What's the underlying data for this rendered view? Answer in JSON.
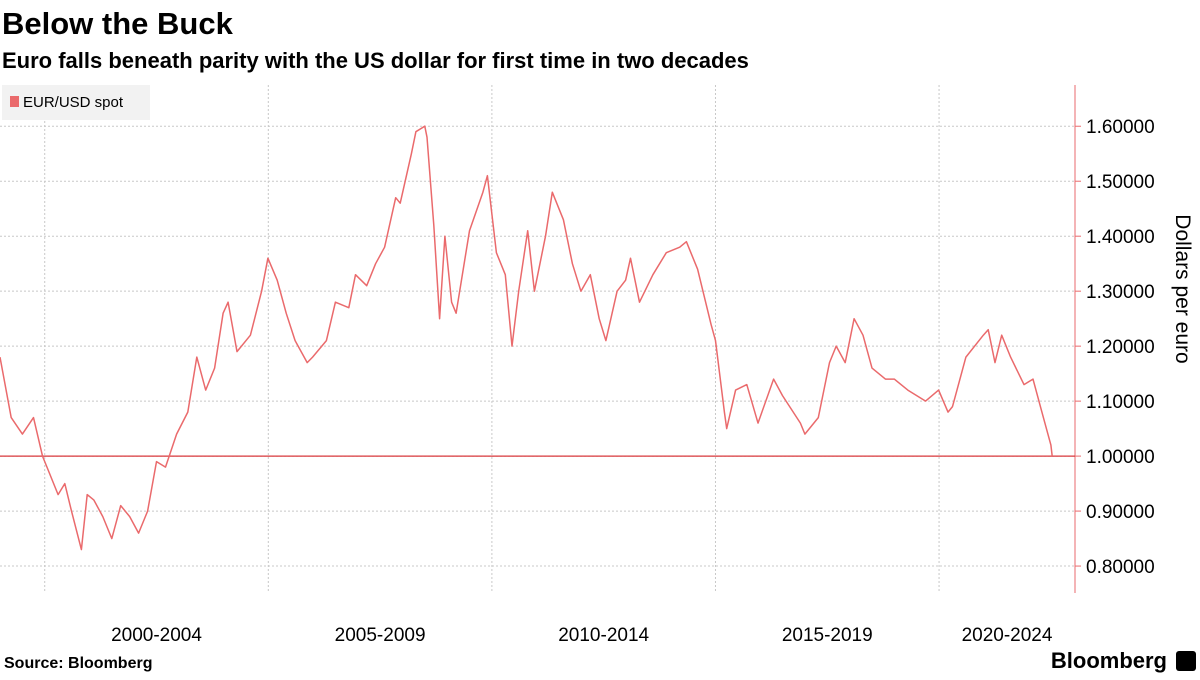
{
  "chart_data": {
    "type": "line",
    "title": "Below the Buck",
    "subtitle": "Euro falls beneath parity with the US dollar for first time in two decades",
    "y_axis_label": "Dollars per euro",
    "source": "Source: Bloomberg",
    "brand": "Bloomberg",
    "x": [
      1999.0,
      1999.25,
      1999.5,
      1999.75,
      1999.95,
      2000.1,
      2000.3,
      2000.45,
      2000.6,
      2000.82,
      2000.95,
      2001.1,
      2001.3,
      2001.5,
      2001.7,
      2001.9,
      2002.1,
      2002.3,
      2002.5,
      2002.7,
      2002.95,
      2003.2,
      2003.4,
      2003.6,
      2003.8,
      2003.99,
      2004.1,
      2004.3,
      2004.6,
      2004.85,
      2004.99,
      2005.2,
      2005.4,
      2005.6,
      2005.87,
      2005.99,
      2006.3,
      2006.5,
      2006.8,
      2006.95,
      2007.2,
      2007.4,
      2007.6,
      2007.85,
      2007.95,
      2008.2,
      2008.3,
      2008.5,
      2008.55,
      2008.7,
      2008.83,
      2008.95,
      2009.1,
      2009.2,
      2009.5,
      2009.8,
      2009.9,
      2010.1,
      2010.3,
      2010.45,
      2010.6,
      2010.8,
      2010.95,
      2011.2,
      2011.35,
      2011.6,
      2011.8,
      2011.99,
      2012.2,
      2012.4,
      2012.55,
      2012.8,
      2012.99,
      2013.1,
      2013.3,
      2013.6,
      2013.9,
      2014.2,
      2014.35,
      2014.6,
      2014.9,
      2015.0,
      2015.2,
      2015.25,
      2015.45,
      2015.7,
      2015.95,
      2016.3,
      2016.5,
      2016.9,
      2017.0,
      2017.3,
      2017.55,
      2017.7,
      2017.9,
      2018.1,
      2018.3,
      2018.5,
      2018.8,
      2019.0,
      2019.3,
      2019.7,
      2019.99,
      2020.2,
      2020.3,
      2020.6,
      2020.99,
      2021.1,
      2021.25,
      2021.4,
      2021.6,
      2021.9,
      2022.1,
      2022.3,
      2022.4,
      2022.5,
      2022.53
    ],
    "series": [
      {
        "name": "EUR/USD spot",
        "color": "#ea6a6c",
        "values": [
          1.18,
          1.07,
          1.04,
          1.07,
          1.0,
          0.97,
          0.93,
          0.95,
          0.9,
          0.83,
          0.93,
          0.92,
          0.89,
          0.85,
          0.91,
          0.89,
          0.86,
          0.9,
          0.99,
          0.98,
          1.04,
          1.08,
          1.18,
          1.12,
          1.16,
          1.26,
          1.28,
          1.19,
          1.22,
          1.3,
          1.36,
          1.32,
          1.26,
          1.21,
          1.17,
          1.18,
          1.21,
          1.28,
          1.27,
          1.33,
          1.31,
          1.35,
          1.38,
          1.47,
          1.46,
          1.55,
          1.59,
          1.6,
          1.58,
          1.42,
          1.25,
          1.4,
          1.28,
          1.26,
          1.41,
          1.48,
          1.51,
          1.37,
          1.33,
          1.2,
          1.3,
          1.41,
          1.3,
          1.4,
          1.48,
          1.43,
          1.35,
          1.3,
          1.33,
          1.25,
          1.21,
          1.3,
          1.32,
          1.36,
          1.28,
          1.33,
          1.37,
          1.38,
          1.39,
          1.34,
          1.24,
          1.21,
          1.08,
          1.05,
          1.12,
          1.13,
          1.06,
          1.14,
          1.11,
          1.06,
          1.04,
          1.07,
          1.17,
          1.2,
          1.17,
          1.25,
          1.22,
          1.16,
          1.14,
          1.14,
          1.12,
          1.1,
          1.12,
          1.08,
          1.09,
          1.18,
          1.22,
          1.23,
          1.17,
          1.22,
          1.18,
          1.13,
          1.14,
          1.08,
          1.05,
          1.02,
          1.0
        ]
      }
    ],
    "xlim": [
      1999.0,
      2023.04
    ],
    "xticks": [
      {
        "value": 2000,
        "label": "2000-2004"
      },
      {
        "value": 2005,
        "label": "2005-2009"
      },
      {
        "value": 2010,
        "label": "2010-2014"
      },
      {
        "value": 2015,
        "label": "2015-2019"
      },
      {
        "value": 2020,
        "label": "2020-2024"
      }
    ],
    "ylim": [
      0.751,
      1.675
    ],
    "yticks": [
      {
        "value": 0.8,
        "label": "0.80000"
      },
      {
        "value": 0.9,
        "label": "0.90000"
      },
      {
        "value": 1.0,
        "label": "1.00000"
      },
      {
        "value": 1.1,
        "label": "1.10000"
      },
      {
        "value": 1.2,
        "label": "1.20000"
      },
      {
        "value": 1.3,
        "label": "1.30000"
      },
      {
        "value": 1.4,
        "label": "1.40000"
      },
      {
        "value": 1.5,
        "label": "1.50000"
      },
      {
        "value": 1.6,
        "label": "1.60000"
      }
    ],
    "reference_line": {
      "value": 1.0,
      "color": "#d9383c"
    },
    "grid": true,
    "legend": "top-left"
  }
}
